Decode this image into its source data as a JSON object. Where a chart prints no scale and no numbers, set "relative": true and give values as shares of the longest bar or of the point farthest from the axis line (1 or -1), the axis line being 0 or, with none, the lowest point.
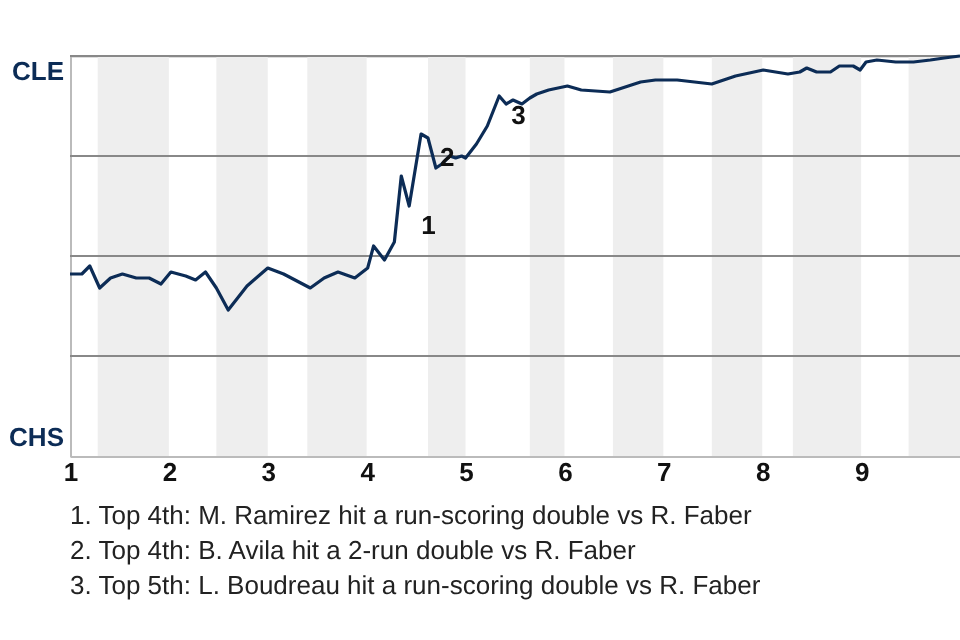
{
  "chart_data": {
    "type": "line",
    "relative": true,
    "x": [
      1.0,
      1.12,
      1.2,
      1.3,
      1.41,
      1.53,
      1.67,
      1.8,
      1.92,
      2.02,
      2.17,
      2.27,
      2.37,
      2.48,
      2.6,
      2.79,
      3.0,
      3.16,
      3.43,
      3.57,
      3.71,
      3.88,
      4.01,
      4.07,
      4.18,
      4.28,
      4.35,
      4.43,
      4.55,
      4.62,
      4.7,
      4.76,
      4.84,
      4.9,
      4.96,
      5.0,
      5.11,
      5.22,
      5.34,
      5.41,
      5.48,
      5.57,
      5.65,
      5.72,
      5.84,
      6.03,
      6.17,
      6.46,
      6.77,
      6.92,
      7.14,
      7.49,
      7.73,
      8.01,
      8.26,
      8.38,
      8.45,
      8.55,
      8.69,
      8.78,
      8.92,
      8.99,
      9.05,
      9.16,
      9.35,
      9.53,
      9.7,
      9.84,
      10.0
    ],
    "series": [
      {
        "color": "#0c2c56",
        "values": [
          0.455,
          0.455,
          0.475,
          0.42,
          0.445,
          0.455,
          0.445,
          0.445,
          0.43,
          0.46,
          0.45,
          0.44,
          0.46,
          0.42,
          0.365,
          0.425,
          0.47,
          0.455,
          0.42,
          0.445,
          0.46,
          0.445,
          0.47,
          0.525,
          0.49,
          0.535,
          0.7,
          0.625,
          0.805,
          0.795,
          0.72,
          0.73,
          0.75,
          0.745,
          0.75,
          0.745,
          0.78,
          0.825,
          0.9,
          0.88,
          0.89,
          0.88,
          0.895,
          0.905,
          0.915,
          0.925,
          0.915,
          0.91,
          0.935,
          0.94,
          0.94,
          0.93,
          0.95,
          0.965,
          0.955,
          0.96,
          0.97,
          0.96,
          0.96,
          0.975,
          0.975,
          0.965,
          0.985,
          0.99,
          0.985,
          0.985,
          0.99,
          0.995,
          1.0
        ]
      }
    ],
    "xlim": [
      1,
      10
    ],
    "xticks": [
      1,
      2,
      3,
      4,
      5,
      6,
      7,
      8,
      9
    ],
    "marker": "none",
    "line_style": "solid",
    "bands": [
      {
        "axis": "x",
        "from": 1.28,
        "to": 2,
        "color": "#eeeeee"
      },
      {
        "axis": "x",
        "from": 2.48,
        "to": 3,
        "color": "#eeeeee"
      },
      {
        "axis": "x",
        "from": 3.4,
        "to": 4,
        "color": "#eeeeee"
      },
      {
        "axis": "x",
        "from": 4.62,
        "to": 5,
        "color": "#eeeeee"
      },
      {
        "axis": "x",
        "from": 5.65,
        "to": 6,
        "color": "#eeeeee"
      },
      {
        "axis": "x",
        "from": 6.49,
        "to": 7,
        "color": "#eeeeee"
      },
      {
        "axis": "x",
        "from": 7.49,
        "to": 8,
        "color": "#eeeeee"
      },
      {
        "axis": "x",
        "from": 8.31,
        "to": 9,
        "color": "#eeeeee"
      },
      {
        "axis": "x",
        "from": 9.48,
        "to": 10,
        "color": "#eeeeee"
      }
    ],
    "ref_lines": [
      {
        "axis": "y",
        "value": 0.25,
        "color": "#888888"
      },
      {
        "axis": "y",
        "value": 0.5,
        "color": "#888888"
      },
      {
        "axis": "y",
        "value": 0.75,
        "color": "#888888"
      },
      {
        "axis": "y",
        "value": 1.0,
        "color": "#888888"
      }
    ],
    "annotations": [
      "CLE",
      "CHS",
      {
        "text": "1",
        "x": 4.43,
        "y": 0.625
      },
      {
        "text": "2",
        "x": 4.62,
        "y": 0.795
      },
      {
        "text": "3",
        "x": 5.34,
        "y": 0.9
      },
      "1. Top 4th: M. Ramirez hit a run-scoring double vs R. Faber",
      "2. Top 4th: B. Avila hit a 2-run double vs R. Faber",
      "3. Top 5th: L. Boudreau hit a run-scoring double vs R. Faber"
    ]
  }
}
